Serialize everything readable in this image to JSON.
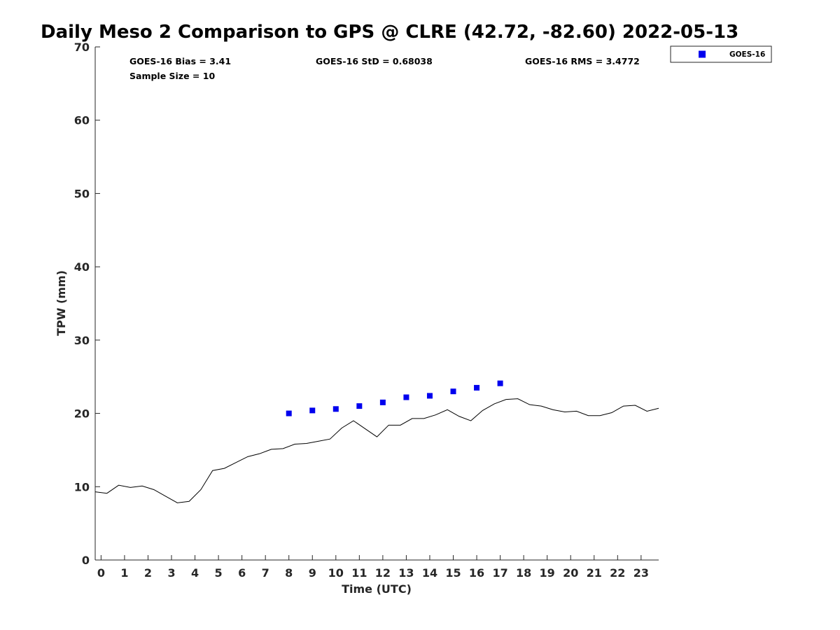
{
  "chart_data": {
    "type": "scatter",
    "title": "Daily Meso 2 Comparison to GPS @ CLRE (42.72, -82.60) 2022-05-13",
    "xlabel": "Time (UTC)",
    "ylabel": "TPW (mm)",
    "xlim": [
      -0.25,
      23.75
    ],
    "ylim": [
      0,
      70
    ],
    "x_ticks": [
      0,
      1,
      2,
      3,
      4,
      5,
      6,
      7,
      8,
      9,
      10,
      11,
      12,
      13,
      14,
      15,
      16,
      17,
      18,
      19,
      20,
      21,
      22,
      23
    ],
    "x_tick_labels": [
      "0",
      "1",
      "2",
      "3",
      "4",
      "5",
      "6",
      "7",
      "8",
      "9",
      "10",
      "11",
      "12",
      "13",
      "14",
      "15",
      "16",
      "17",
      "18",
      "19",
      "20",
      "21",
      "22",
      "23"
    ],
    "y_ticks": [
      0,
      10,
      20,
      30,
      40,
      50,
      60,
      70
    ],
    "y_tick_labels": [
      "0",
      "10",
      "20",
      "30",
      "40",
      "50",
      "60",
      "70"
    ],
    "grid": false,
    "legend_position": "top-right",
    "series": [
      {
        "kind": "line",
        "color": "#000000",
        "x": [
          -0.25,
          0.25,
          0.75,
          1.25,
          1.75,
          2.25,
          2.75,
          3.25,
          3.75,
          4.25,
          4.75,
          5.25,
          5.75,
          6.25,
          6.75,
          7.25,
          7.75,
          8.25,
          8.75,
          9.25,
          9.75,
          10.25,
          10.75,
          11.25,
          11.75,
          12.25,
          12.75,
          13.25,
          13.75,
          14.25,
          14.75,
          15.25,
          15.75,
          16.25,
          16.75,
          17.25,
          17.75,
          18.25,
          18.75,
          19.25,
          19.75,
          20.25,
          20.75,
          21.25,
          21.75,
          22.25,
          22.75,
          23.25,
          23.75
        ],
        "y": [
          9.3,
          9.1,
          10.2,
          9.9,
          10.1,
          9.6,
          8.7,
          7.8,
          8.0,
          9.6,
          12.2,
          12.5,
          13.3,
          14.1,
          14.5,
          15.1,
          15.2,
          15.8,
          15.9,
          16.2,
          16.5,
          18.0,
          19.0,
          17.9,
          16.8,
          18.4,
          18.4,
          19.3,
          19.3,
          19.8,
          20.5,
          19.6,
          19.0,
          20.4,
          21.3,
          21.9,
          22.0,
          21.2,
          21.0,
          20.5,
          20.2,
          20.3,
          19.7,
          19.7,
          20.1,
          21.0,
          21.1,
          20.3,
          20.7
        ]
      },
      {
        "kind": "scatter",
        "name": "GOES-16",
        "color": "#0000ee",
        "marker": "square",
        "x": [
          8,
          9,
          10,
          11,
          12,
          13,
          14,
          15,
          16,
          17
        ],
        "y": [
          20.0,
          20.4,
          20.6,
          21.0,
          21.5,
          22.2,
          22.4,
          23.0,
          23.5,
          24.1
        ]
      }
    ],
    "stats": {
      "bias": "GOES-16 Bias = 3.41",
      "std": "GOES-16 StD = 0.68038",
      "rms": "GOES-16 RMS = 3.4772",
      "sample": "Sample Size = 10"
    }
  }
}
